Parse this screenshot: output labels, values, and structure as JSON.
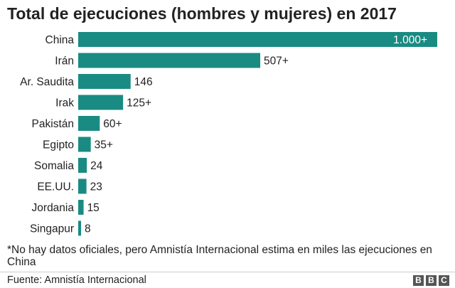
{
  "title": "Total de ejecuciones (hombres y mujeres) en 2017",
  "note": "*No hay datos oficiales, pero Amnistía Internacional estima en miles las ejecuciones en China",
  "source": "Fuente: Amnistía Internacional",
  "logo": [
    "B",
    "B",
    "C"
  ],
  "colors": {
    "bar": "#1a8b82",
    "label_inside": "#ffffff",
    "text": "#222222"
  },
  "chart_data": {
    "type": "bar",
    "orientation": "horizontal",
    "title": "Total de ejecuciones (hombres y mujeres) en 2017",
    "categories": [
      "China",
      "Irán",
      "Ar. Saudita",
      "Irak",
      "Pakistán",
      "Egipto",
      "Somalia",
      "EE.UU.",
      "Jordania",
      "Singapur"
    ],
    "values": [
      1000,
      507,
      146,
      125,
      60,
      35,
      24,
      23,
      15,
      8
    ],
    "value_labels": [
      "1.000+",
      "507+",
      "146",
      "125+",
      "60+",
      "35+",
      "24",
      "23",
      "15",
      "8"
    ],
    "xlim": [
      0,
      1000
    ],
    "grid": false,
    "legend": "none"
  }
}
